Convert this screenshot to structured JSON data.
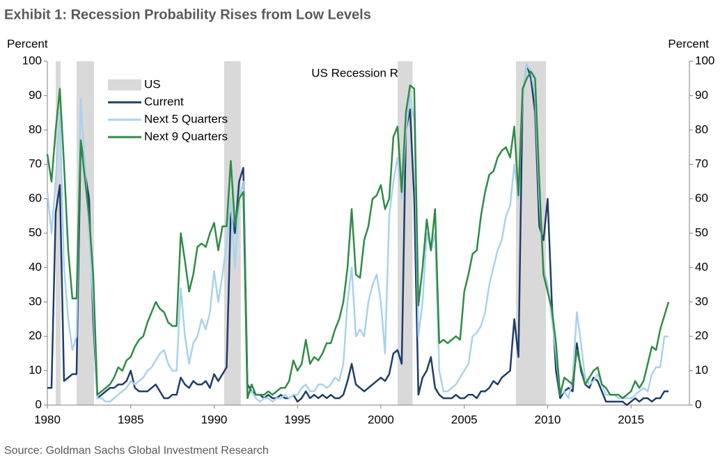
{
  "chart_data": {
    "type": "line",
    "title": "Exhibit 1: Recession Probability Rises from Low Levels",
    "annotation": "US Recession Risk",
    "y_label": "Percent",
    "y2_label": "Percent",
    "source": "Source: Goldman Sachs Global Investment Research",
    "recession": {
      "name": "US",
      "color": "#d9d9d9",
      "spans": [
        [
          1980.5,
          1980.8
        ],
        [
          1981.75,
          1982.8
        ],
        [
          1990.6,
          1991.6
        ],
        [
          2001.0,
          2001.9
        ],
        [
          2008.1,
          2009.9
        ]
      ]
    },
    "x": [
      1980,
      1980.25,
      1980.5,
      1980.75,
      1981,
      1981.25,
      1981.5,
      1981.75,
      1982,
      1982.25,
      1982.5,
      1982.75,
      1983,
      1983.25,
      1983.5,
      1983.75,
      1984,
      1984.25,
      1984.5,
      1984.75,
      1985,
      1985.25,
      1985.5,
      1985.75,
      1986,
      1986.25,
      1986.5,
      1986.75,
      1987,
      1987.25,
      1987.5,
      1987.75,
      1988,
      1988.25,
      1988.5,
      1988.75,
      1989,
      1989.25,
      1989.5,
      1989.75,
      1990,
      1990.25,
      1990.5,
      1990.75,
      1991,
      1991.25,
      1991.5,
      1991.75,
      1992,
      1992.25,
      1992.5,
      1992.75,
      1993,
      1993.25,
      1993.5,
      1993.75,
      1994,
      1994.25,
      1994.5,
      1994.75,
      1995,
      1995.25,
      1995.5,
      1995.75,
      1996,
      1996.25,
      1996.5,
      1996.75,
      1997,
      1997.25,
      1997.5,
      1997.75,
      1998,
      1998.25,
      1998.5,
      1998.75,
      1999,
      1999.25,
      1999.5,
      1999.75,
      2000,
      2000.25,
      2000.5,
      2000.75,
      2001,
      2001.25,
      2001.5,
      2001.75,
      2002,
      2002.25,
      2002.5,
      2002.75,
      2003,
      2003.25,
      2003.5,
      2003.75,
      2004,
      2004.25,
      2004.5,
      2004.75,
      2005,
      2005.25,
      2005.5,
      2005.75,
      2006,
      2006.25,
      2006.5,
      2006.75,
      2007,
      2007.25,
      2007.5,
      2007.75,
      2008,
      2008.25,
      2008.5,
      2008.75,
      2009,
      2009.25,
      2009.5,
      2009.75,
      2010,
      2010.25,
      2010.5,
      2010.75,
      2011,
      2011.25,
      2011.5,
      2011.75,
      2012,
      2012.25,
      2012.5,
      2012.75,
      2013,
      2013.25,
      2013.5,
      2013.75,
      2014,
      2014.25,
      2014.5,
      2014.75,
      2015,
      2015.25,
      2015.5,
      2015.75,
      2016,
      2016.25,
      2016.5,
      2016.75,
      2017,
      2017.25
    ],
    "series": [
      {
        "name": "Current",
        "color": "#1f3d6b",
        "values": [
          5,
          5,
          56,
          64,
          7,
          8,
          9,
          9,
          77,
          68,
          60,
          25,
          2,
          3,
          4,
          5,
          5,
          6,
          6,
          7,
          10,
          5,
          4,
          4,
          4,
          5,
          6,
          4,
          2,
          2,
          3,
          3,
          8,
          6,
          5,
          7,
          6,
          6,
          7,
          5,
          9,
          7,
          9,
          11,
          56,
          50,
          65,
          69,
          6,
          4,
          3,
          3,
          2,
          3,
          2,
          2,
          3,
          2,
          2,
          3,
          1,
          2,
          4,
          2,
          3,
          2,
          3,
          2,
          3,
          2,
          2,
          3,
          7,
          12,
          6,
          5,
          4,
          5,
          6,
          7,
          8,
          7,
          9,
          15,
          16,
          12,
          80,
          86,
          60,
          3,
          8,
          10,
          14,
          5,
          3,
          2,
          2,
          2,
          3,
          2,
          2,
          3,
          3,
          2,
          4,
          4,
          5,
          7,
          6,
          8,
          9,
          10,
          25,
          14,
          90,
          99,
          95,
          85,
          52,
          48,
          60,
          30,
          10,
          2,
          4,
          5,
          4,
          18,
          10,
          6,
          5,
          8,
          7,
          4,
          1,
          1,
          1,
          1,
          1,
          0,
          1,
          2,
          1,
          2,
          2,
          1,
          2,
          2,
          4,
          4
        ]
      },
      {
        "name": "Next 5 Quarters",
        "color": "#a9d2ee",
        "values": [
          62,
          50,
          65,
          85,
          40,
          25,
          16,
          20,
          89,
          70,
          50,
          30,
          2,
          2,
          1,
          1,
          2,
          3,
          4,
          5,
          7,
          6,
          7,
          8,
          10,
          11,
          13,
          15,
          16,
          12,
          10,
          10,
          34,
          20,
          12,
          18,
          20,
          25,
          22,
          27,
          39,
          30,
          38,
          47,
          60,
          40,
          60,
          65,
          3,
          4,
          2,
          1,
          2,
          2,
          1,
          2,
          2,
          3,
          2,
          3,
          3,
          5,
          6,
          4,
          4,
          6,
          6,
          5,
          6,
          8,
          7,
          12,
          30,
          40,
          20,
          22,
          20,
          30,
          35,
          38,
          30,
          15,
          55,
          65,
          72,
          60,
          80,
          90,
          83,
          20,
          30,
          50,
          45,
          50,
          10,
          4,
          4,
          5,
          6,
          8,
          10,
          12,
          20,
          21,
          23,
          27,
          35,
          40,
          45,
          48,
          55,
          58,
          70,
          60,
          90,
          99,
          97,
          90,
          60,
          40,
          35,
          25,
          15,
          3,
          4,
          2,
          8,
          27,
          18,
          8,
          6,
          7,
          9,
          6,
          3,
          3,
          3,
          2,
          2,
          2,
          2,
          3,
          4,
          5,
          4,
          9,
          11,
          11,
          20,
          20
        ]
      },
      {
        "name": "Next 9 Quarters",
        "color": "#2e8b45",
        "values": [
          73,
          65,
          80,
          92,
          70,
          45,
          31,
          31,
          77,
          66,
          55,
          38,
          3,
          4,
          5,
          6,
          8,
          11,
          10,
          13,
          14,
          17,
          19,
          20,
          24,
          27,
          30,
          28,
          27,
          24,
          23,
          23,
          50,
          42,
          33,
          38,
          46,
          47,
          46,
          50,
          53,
          45,
          52,
          52,
          71,
          52,
          60,
          62,
          2,
          6,
          3,
          3,
          3,
          4,
          3,
          4,
          5,
          5,
          7,
          13,
          10,
          12,
          19,
          12,
          14,
          13,
          15,
          18,
          18,
          22,
          25,
          30,
          40,
          57,
          38,
          37,
          48,
          52,
          60,
          61,
          64,
          57,
          60,
          78,
          81,
          62,
          85,
          93,
          92,
          29,
          40,
          54,
          45,
          57,
          18,
          19,
          18,
          19,
          20,
          19,
          33,
          38,
          44,
          45,
          55,
          62,
          67,
          68,
          72,
          74,
          75,
          72,
          81,
          61,
          92,
          95,
          97,
          95,
          65,
          38,
          33,
          28,
          18,
          3,
          8,
          7,
          6,
          16,
          11,
          6,
          8,
          10,
          11,
          6,
          5,
          3,
          3,
          3,
          2,
          3,
          4,
          7,
          5,
          7,
          12,
          17,
          16,
          22,
          26,
          30
        ]
      }
    ],
    "xlim": [
      1980,
      2018.5
    ],
    "xticks": [
      1980,
      1985,
      1990,
      1995,
      2000,
      2005,
      2010,
      2015
    ],
    "ylim": [
      0,
      100
    ],
    "yticks": [
      0,
      10,
      20,
      30,
      40,
      50,
      60,
      70,
      80,
      90,
      100
    ],
    "y2lim": [
      0,
      100
    ],
    "y2ticks": [
      0,
      10,
      20,
      30,
      40,
      50,
      60,
      70,
      80,
      90,
      100
    ],
    "grid": false
  }
}
